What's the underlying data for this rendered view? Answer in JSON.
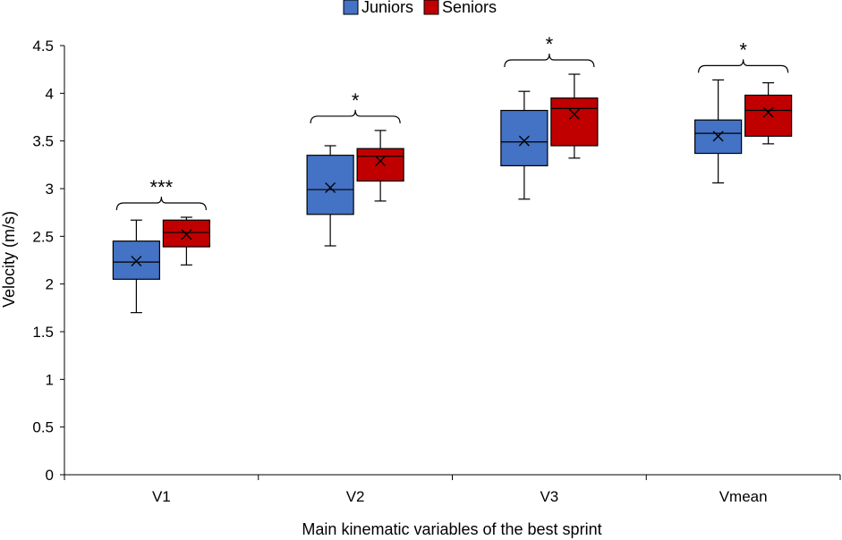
{
  "chart_data": {
    "type": "boxplot",
    "title": "",
    "xlabel": "Main kinematic variables of the best sprint",
    "ylabel": "Velocity (m/s)",
    "ylim": [
      0,
      4.5
    ],
    "yticks": [
      "0",
      "0.5",
      "1",
      "1.5",
      "2",
      "2.5",
      "3",
      "3.5",
      "4",
      "4.5"
    ],
    "ytick_values": [
      0,
      0.5,
      1,
      1.5,
      2,
      2.5,
      3,
      3.5,
      4,
      4.5
    ],
    "legend_position": "top-center",
    "categories": [
      "V1",
      "V2",
      "V3",
      "Vmean"
    ],
    "significance": [
      "***",
      "*",
      "*",
      "*"
    ],
    "series": [
      {
        "name": "Juniors",
        "color": "#4472C4",
        "boxes": [
          {
            "min": 1.7,
            "q1": 2.05,
            "median": 2.23,
            "q3": 2.45,
            "max": 2.67,
            "mean": 2.24
          },
          {
            "min": 2.4,
            "q1": 2.73,
            "median": 2.99,
            "q3": 3.35,
            "max": 3.45,
            "mean": 3.01
          },
          {
            "min": 2.89,
            "q1": 3.24,
            "median": 3.49,
            "q3": 3.82,
            "max": 4.02,
            "mean": 3.5
          },
          {
            "min": 3.06,
            "q1": 3.37,
            "median": 3.58,
            "q3": 3.72,
            "max": 4.14,
            "mean": 3.55
          }
        ]
      },
      {
        "name": "Seniors",
        "color": "#C00000",
        "boxes": [
          {
            "min": 2.2,
            "q1": 2.39,
            "median": 2.54,
            "q3": 2.67,
            "max": 2.7,
            "mean": 2.52
          },
          {
            "min": 2.87,
            "q1": 3.08,
            "median": 3.34,
            "q3": 3.42,
            "max": 3.61,
            "mean": 3.29
          },
          {
            "min": 3.32,
            "q1": 3.45,
            "median": 3.84,
            "q3": 3.95,
            "max": 4.2,
            "mean": 3.78
          },
          {
            "min": 3.47,
            "q1": 3.55,
            "median": 3.82,
            "q3": 3.98,
            "max": 4.11,
            "mean": 3.8
          }
        ]
      }
    ]
  }
}
